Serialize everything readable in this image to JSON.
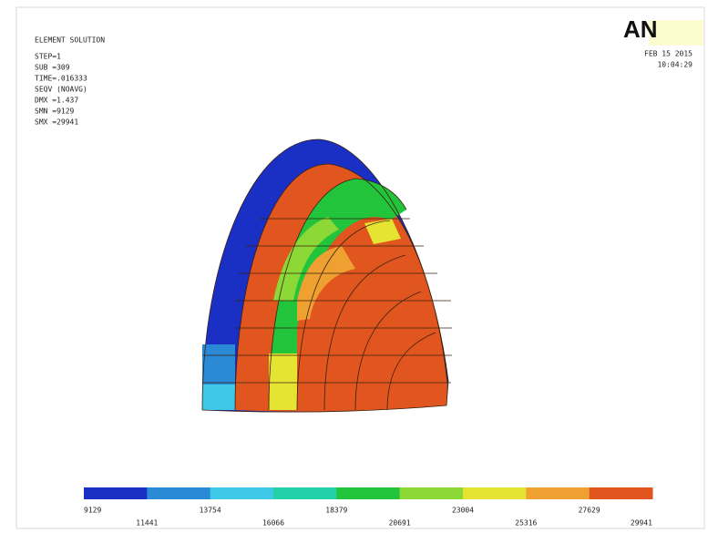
{
  "header": {
    "title": "ELEMENT SOLUTION",
    "info": [
      "STEP=1",
      "SUB =309",
      "TIME=.016333",
      "SEQV (NOAVG)",
      "DMX =1.437",
      "SMN =9129",
      "SMX =29941"
    ],
    "logo": "AN",
    "date": "FEB 15 2015",
    "time": "10:04:29"
  },
  "legend": {
    "colors": [
      "#1a2fc4",
      "#2a8ad6",
      "#3cc8e6",
      "#24d0a8",
      "#22c43c",
      "#8cd836",
      "#e6e432",
      "#eea030",
      "#e0561e"
    ],
    "labels": [
      9129,
      11441,
      13754,
      16066,
      18379,
      20691,
      23004,
      25316,
      27629,
      29941
    ]
  }
}
